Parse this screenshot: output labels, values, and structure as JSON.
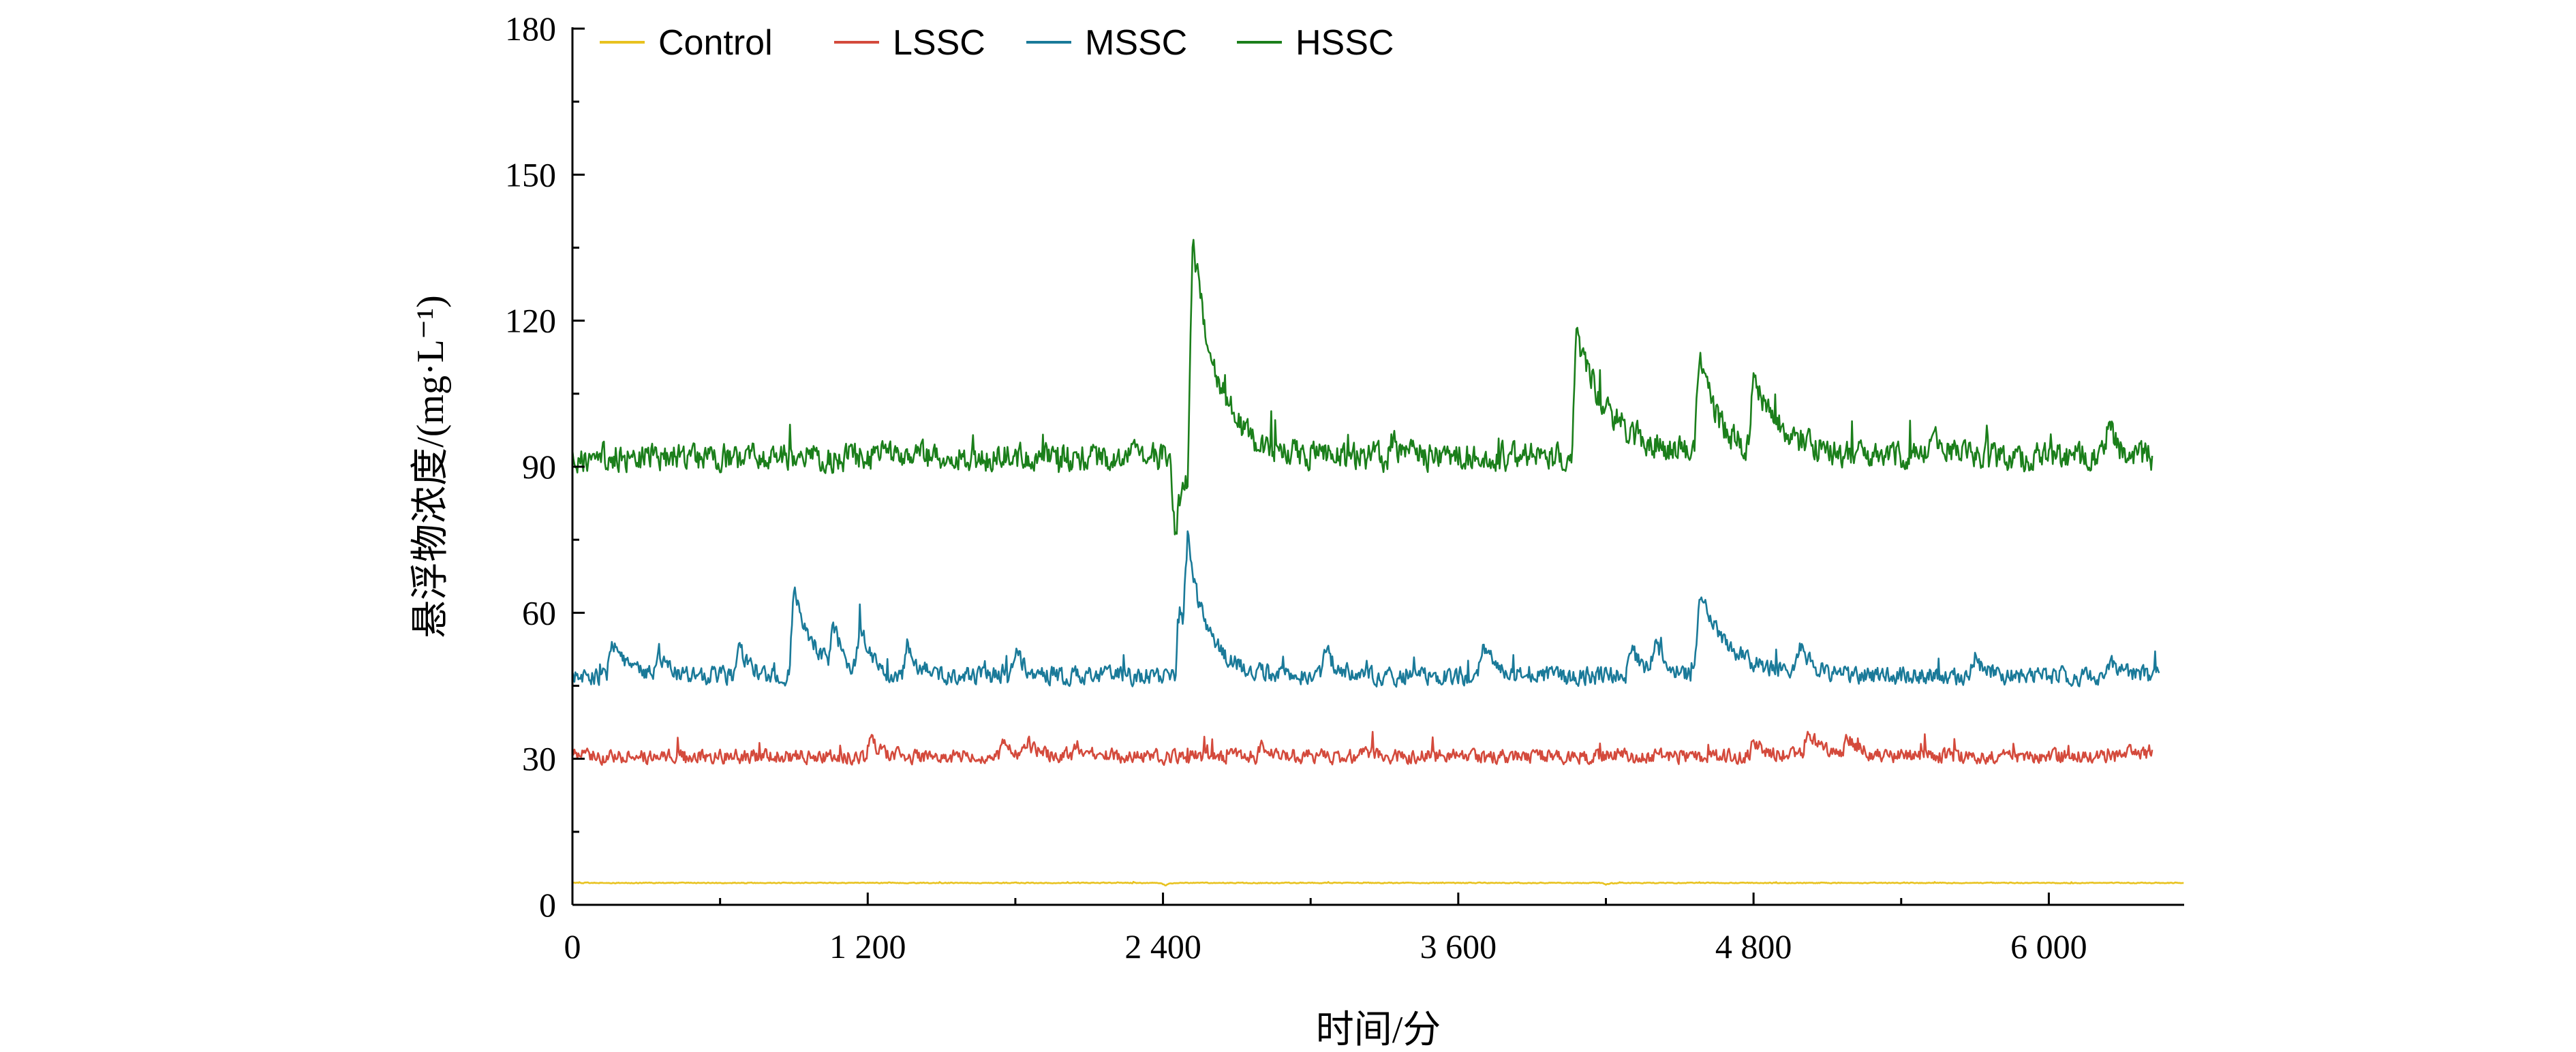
{
  "chart_data": {
    "type": "line",
    "title": "",
    "xlabel": "时间/分",
    "ylabel": "悬浮物浓度/(mg·L⁻¹)",
    "xlim": [
      0,
      6550
    ],
    "ylim": [
      0,
      180
    ],
    "x_ticks": [
      0,
      1200,
      2400,
      3600,
      4800,
      6000
    ],
    "x_tick_labels": [
      "0",
      "1 200",
      "2 400",
      "3 600",
      "4 800",
      "6 000"
    ],
    "y_ticks": [
      0,
      30,
      60,
      90,
      120,
      150,
      180
    ],
    "y_tick_labels": [
      "0",
      "30",
      "60",
      "90",
      "120",
      "150",
      "180"
    ],
    "grid": false,
    "legend_position": "top-left",
    "series": [
      {
        "name": "Control",
        "color": "#e8c21f",
        "x_start": 0,
        "x_end": 6550,
        "base": 4.5,
        "noise": 0.05,
        "events": [
          [
            2410,
            -0.5,
            15
          ],
          [
            4200,
            -0.4,
            15
          ]
        ]
      },
      {
        "name": "LSSC",
        "color": "#d44a3c",
        "x_start": 0,
        "x_end": 6420,
        "base": 30.5,
        "noise": 0.8,
        "events": [
          [
            1210,
            3.5,
            40
          ],
          [
            1750,
            3,
            40
          ],
          [
            1850,
            2.8,
            40
          ],
          [
            2050,
            2.5,
            40
          ],
          [
            2800,
            2.2,
            40
          ],
          [
            3200,
            2,
            40
          ],
          [
            4800,
            3,
            60
          ],
          [
            5020,
            6,
            50
          ],
          [
            5180,
            4,
            50
          ],
          [
            6300,
            1.5,
            40
          ]
        ]
      },
      {
        "name": "MSSC",
        "color": "#1a7a99",
        "x_start": 0,
        "x_end": 6450,
        "base": 47,
        "noise": 1.0,
        "events": [
          [
            160,
            8,
            50
          ],
          [
            350,
            5,
            40
          ],
          [
            680,
            6,
            40
          ],
          [
            900,
            18,
            80
          ],
          [
            1060,
            9,
            40
          ],
          [
            1170,
            10,
            40
          ],
          [
            1360,
            7,
            40
          ],
          [
            1800,
            6,
            40
          ],
          [
            2470,
            14,
            40
          ],
          [
            2500,
            22,
            90
          ],
          [
            3060,
            6,
            40
          ],
          [
            3700,
            7,
            50
          ],
          [
            4300,
            6,
            50
          ],
          [
            4400,
            7,
            50
          ],
          [
            4580,
            17,
            120
          ],
          [
            4990,
            6,
            50
          ],
          [
            5700,
            4,
            40
          ],
          [
            6250,
            4,
            40
          ]
        ]
      },
      {
        "name": "HSSC",
        "color": "#1b7f1b",
        "x_start": 0,
        "x_end": 6420,
        "base": 92,
        "noise": 1.6,
        "events": [
          [
            2450,
            -15,
            40
          ],
          [
            2520,
            47,
            100
          ],
          [
            3330,
            4,
            40
          ],
          [
            4080,
            25,
            140
          ],
          [
            4580,
            20,
            80
          ],
          [
            4800,
            15,
            120
          ],
          [
            5530,
            6,
            40
          ],
          [
            6240,
            7,
            40
          ]
        ]
      }
    ]
  }
}
